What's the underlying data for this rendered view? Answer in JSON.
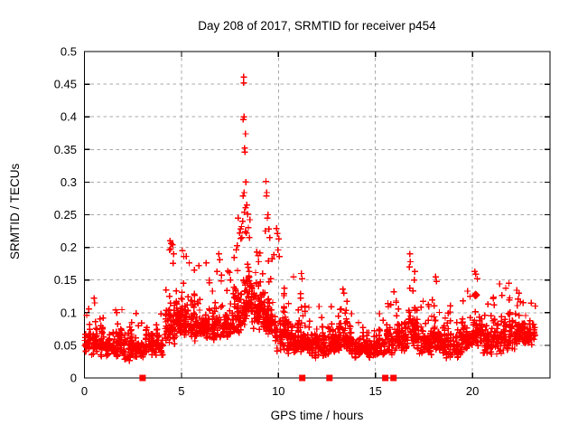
{
  "chart": {
    "title": "Day 208 of 2017, SRMTID for receiver p454",
    "xlabel": "GPS time / hours",
    "ylabel": "SRMTID / TECUs"
  },
  "colors": {
    "marker": "#ff0000",
    "grid": "#a8a8a8",
    "axis": "#000000",
    "background": "#ffffff",
    "text": "#000000"
  },
  "chart_data": {
    "type": "scatter",
    "marker": "plus",
    "title": "Day 208 of 2017, SRMTID for receiver p454",
    "xlabel": "GPS time / hours",
    "ylabel": "SRMTID / TECUs",
    "xlim": [
      0,
      24
    ],
    "ylim": [
      0,
      0.5
    ],
    "grid": "dashed",
    "legend": "none",
    "xticks": [
      {
        "v": 0,
        "label": "0"
      },
      {
        "v": 5,
        "label": "5"
      },
      {
        "v": 10,
        "label": "10"
      },
      {
        "v": 15,
        "label": "15"
      },
      {
        "v": 20,
        "label": "20"
      }
    ],
    "yticks": [
      {
        "v": 0.0,
        "label": "0"
      },
      {
        "v": 0.05,
        "label": "0.05"
      },
      {
        "v": 0.1,
        "label": "0.1"
      },
      {
        "v": 0.15,
        "label": "0.15"
      },
      {
        "v": 0.2,
        "label": "0.2"
      },
      {
        "v": 0.25,
        "label": "0.25"
      },
      {
        "v": 0.3,
        "label": "0.3"
      },
      {
        "v": 0.35,
        "label": "0.35"
      },
      {
        "v": 0.4,
        "label": "0.4"
      },
      {
        "v": 0.45,
        "label": "0.45"
      },
      {
        "v": 0.5,
        "label": "0.5"
      }
    ],
    "zero_value_squares_x_hours": [
      3.0,
      11.23,
      12.63,
      15.51,
      15.93
    ],
    "diamond_blob": {
      "x": 20.17,
      "y": 0.127
    },
    "outlier_points": [
      [
        8.21,
        0.461
      ],
      [
        8.21,
        0.452
      ],
      [
        8.22,
        0.4
      ],
      [
        8.19,
        0.396
      ],
      [
        8.3,
        0.374
      ],
      [
        8.26,
        0.352
      ],
      [
        8.27,
        0.346
      ],
      [
        8.32,
        0.3
      ],
      [
        8.23,
        0.284
      ],
      [
        8.18,
        0.279
      ],
      [
        8.37,
        0.265
      ],
      [
        8.3,
        0.261
      ],
      [
        8.24,
        0.254
      ],
      [
        8.42,
        0.251
      ],
      [
        8.15,
        0.24
      ],
      [
        8.1,
        0.232
      ],
      [
        8.05,
        0.228
      ],
      [
        7.92,
        0.245
      ],
      [
        8.0,
        0.222
      ],
      [
        8.12,
        0.215
      ],
      [
        8.35,
        0.222
      ],
      [
        8.45,
        0.23
      ],
      [
        8.5,
        0.215
      ],
      [
        9.36,
        0.301
      ],
      [
        9.4,
        0.284
      ],
      [
        9.38,
        0.279
      ],
      [
        9.46,
        0.25
      ],
      [
        9.43,
        0.245
      ],
      [
        9.5,
        0.228
      ],
      [
        9.33,
        0.225
      ],
      [
        9.55,
        0.215
      ],
      [
        9.9,
        0.229
      ],
      [
        9.95,
        0.221
      ],
      [
        10.02,
        0.213
      ],
      [
        9.98,
        0.196
      ],
      [
        10.05,
        0.186
      ],
      [
        4.42,
        0.21
      ],
      [
        4.48,
        0.206
      ],
      [
        4.55,
        0.204
      ],
      [
        4.38,
        0.196
      ],
      [
        4.6,
        0.19
      ],
      [
        5.05,
        0.195
      ],
      [
        5.12,
        0.186
      ],
      [
        5.9,
        0.172
      ],
      [
        6.28,
        0.176
      ],
      [
        6.93,
        0.19
      ],
      [
        6.98,
        0.181
      ],
      [
        16.78,
        0.19
      ],
      [
        16.8,
        0.178
      ],
      [
        16.75,
        0.17
      ],
      [
        17.0,
        0.15
      ],
      [
        20.12,
        0.163
      ],
      [
        20.18,
        0.159
      ],
      [
        20.25,
        0.152
      ],
      [
        18.1,
        0.155
      ],
      [
        18.15,
        0.148
      ],
      [
        10.78,
        0.155
      ],
      [
        11.18,
        0.16
      ],
      [
        11.22,
        0.152
      ],
      [
        21.88,
        0.145
      ],
      [
        21.4,
        0.144
      ],
      [
        13.32,
        0.136
      ],
      [
        13.38,
        0.13
      ],
      [
        19.75,
        0.133
      ],
      [
        0.5,
        0.122
      ],
      [
        0.53,
        0.115
      ],
      [
        15.95,
        0.132
      ],
      [
        22.4,
        0.13
      ]
    ],
    "density_bands_x0_x1_n_lo_hi_tailHi": [
      [
        0.0,
        0.7,
        60,
        0.035,
        0.09,
        0.115
      ],
      [
        0.7,
        2.0,
        115,
        0.032,
        0.085,
        0.105
      ],
      [
        2.0,
        3.1,
        95,
        0.025,
        0.085,
        0.105
      ],
      [
        3.1,
        4.1,
        90,
        0.032,
        0.085,
        0.11
      ],
      [
        4.1,
        4.7,
        60,
        0.05,
        0.14,
        0.2
      ],
      [
        4.7,
        5.4,
        80,
        0.06,
        0.15,
        0.19
      ],
      [
        5.4,
        6.4,
        100,
        0.055,
        0.135,
        0.175
      ],
      [
        6.4,
        7.6,
        115,
        0.055,
        0.125,
        0.165
      ],
      [
        7.6,
        8.15,
        60,
        0.06,
        0.16,
        0.22
      ],
      [
        8.15,
        8.65,
        75,
        0.08,
        0.19,
        0.26
      ],
      [
        8.65,
        9.35,
        85,
        0.07,
        0.165,
        0.22
      ],
      [
        9.35,
        9.85,
        60,
        0.06,
        0.15,
        0.21
      ],
      [
        9.85,
        10.45,
        60,
        0.04,
        0.115,
        0.17
      ],
      [
        10.45,
        11.05,
        65,
        0.035,
        0.1,
        0.14
      ],
      [
        11.05,
        11.65,
        65,
        0.038,
        0.105,
        0.15
      ],
      [
        11.65,
        12.65,
        100,
        0.03,
        0.09,
        0.12
      ],
      [
        12.65,
        13.15,
        50,
        0.035,
        0.095,
        0.125
      ],
      [
        13.15,
        13.75,
        60,
        0.038,
        0.1,
        0.13
      ],
      [
        13.75,
        15.35,
        145,
        0.03,
        0.08,
        0.1
      ],
      [
        15.35,
        16.15,
        80,
        0.035,
        0.095,
        0.125
      ],
      [
        16.15,
        16.65,
        55,
        0.04,
        0.105,
        0.145
      ],
      [
        16.65,
        17.15,
        55,
        0.045,
        0.11,
        0.165
      ],
      [
        17.15,
        17.95,
        80,
        0.035,
        0.095,
        0.125
      ],
      [
        17.95,
        18.45,
        55,
        0.04,
        0.105,
        0.148
      ],
      [
        18.45,
        19.45,
        95,
        0.03,
        0.09,
        0.115
      ],
      [
        19.45,
        20.05,
        60,
        0.04,
        0.1,
        0.135
      ],
      [
        20.05,
        20.55,
        55,
        0.045,
        0.11,
        0.155
      ],
      [
        20.55,
        21.55,
        95,
        0.035,
        0.095,
        0.13
      ],
      [
        21.55,
        22.35,
        80,
        0.04,
        0.105,
        0.14
      ],
      [
        22.35,
        23.25,
        95,
        0.05,
        0.11,
        0.13
      ]
    ],
    "seed": 208
  }
}
